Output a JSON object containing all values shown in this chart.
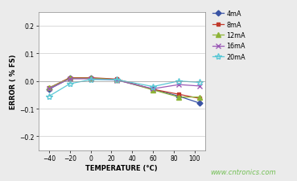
{
  "x": [
    -40,
    -20,
    0,
    25,
    60,
    85,
    105
  ],
  "series_order": [
    "4mA",
    "8mA",
    "12mA",
    "16mA",
    "20mA"
  ],
  "series": {
    "4mA": [
      -0.03,
      0.01,
      0.01,
      0.005,
      -0.03,
      -0.055,
      -0.08
    ],
    "8mA": [
      -0.025,
      0.012,
      0.012,
      0.007,
      -0.03,
      -0.048,
      -0.063
    ],
    "12mA": [
      -0.025,
      0.01,
      0.01,
      0.005,
      -0.032,
      -0.058,
      -0.058
    ],
    "16mA": [
      -0.028,
      0.008,
      0.008,
      0.003,
      -0.028,
      -0.013,
      -0.018
    ],
    "20mA": [
      -0.055,
      -0.01,
      0.005,
      0.005,
      -0.02,
      0.0,
      -0.005
    ]
  },
  "colors": {
    "4mA": "#3953a4",
    "8mA": "#c0392b",
    "12mA": "#8db336",
    "16mA": "#9b59b6",
    "20mA": "#5bc8d6"
  },
  "markers": {
    "4mA": "D",
    "8mA": "s",
    "12mA": "^",
    "16mA": "x",
    "20mA": "*"
  },
  "marker_sizes": {
    "4mA": 3.5,
    "8mA": 3.5,
    "12mA": 4.0,
    "16mA": 5.0,
    "20mA": 6.0
  },
  "ylabel": "ERROR ( % FS)",
  "xlabel": "TEMPERATURE (°C)",
  "ylim": [
    -0.25,
    0.25
  ],
  "yticks": [
    -0.2,
    -0.1,
    0.0,
    0.1,
    0.2
  ],
  "xticks": [
    -40,
    -20,
    0,
    20,
    40,
    60,
    80,
    100
  ],
  "xlim": [
    -50,
    110
  ],
  "watermark": "www.cntronics.com",
  "bg_color": "#ebebeb",
  "plot_bg_color": "#ffffff"
}
